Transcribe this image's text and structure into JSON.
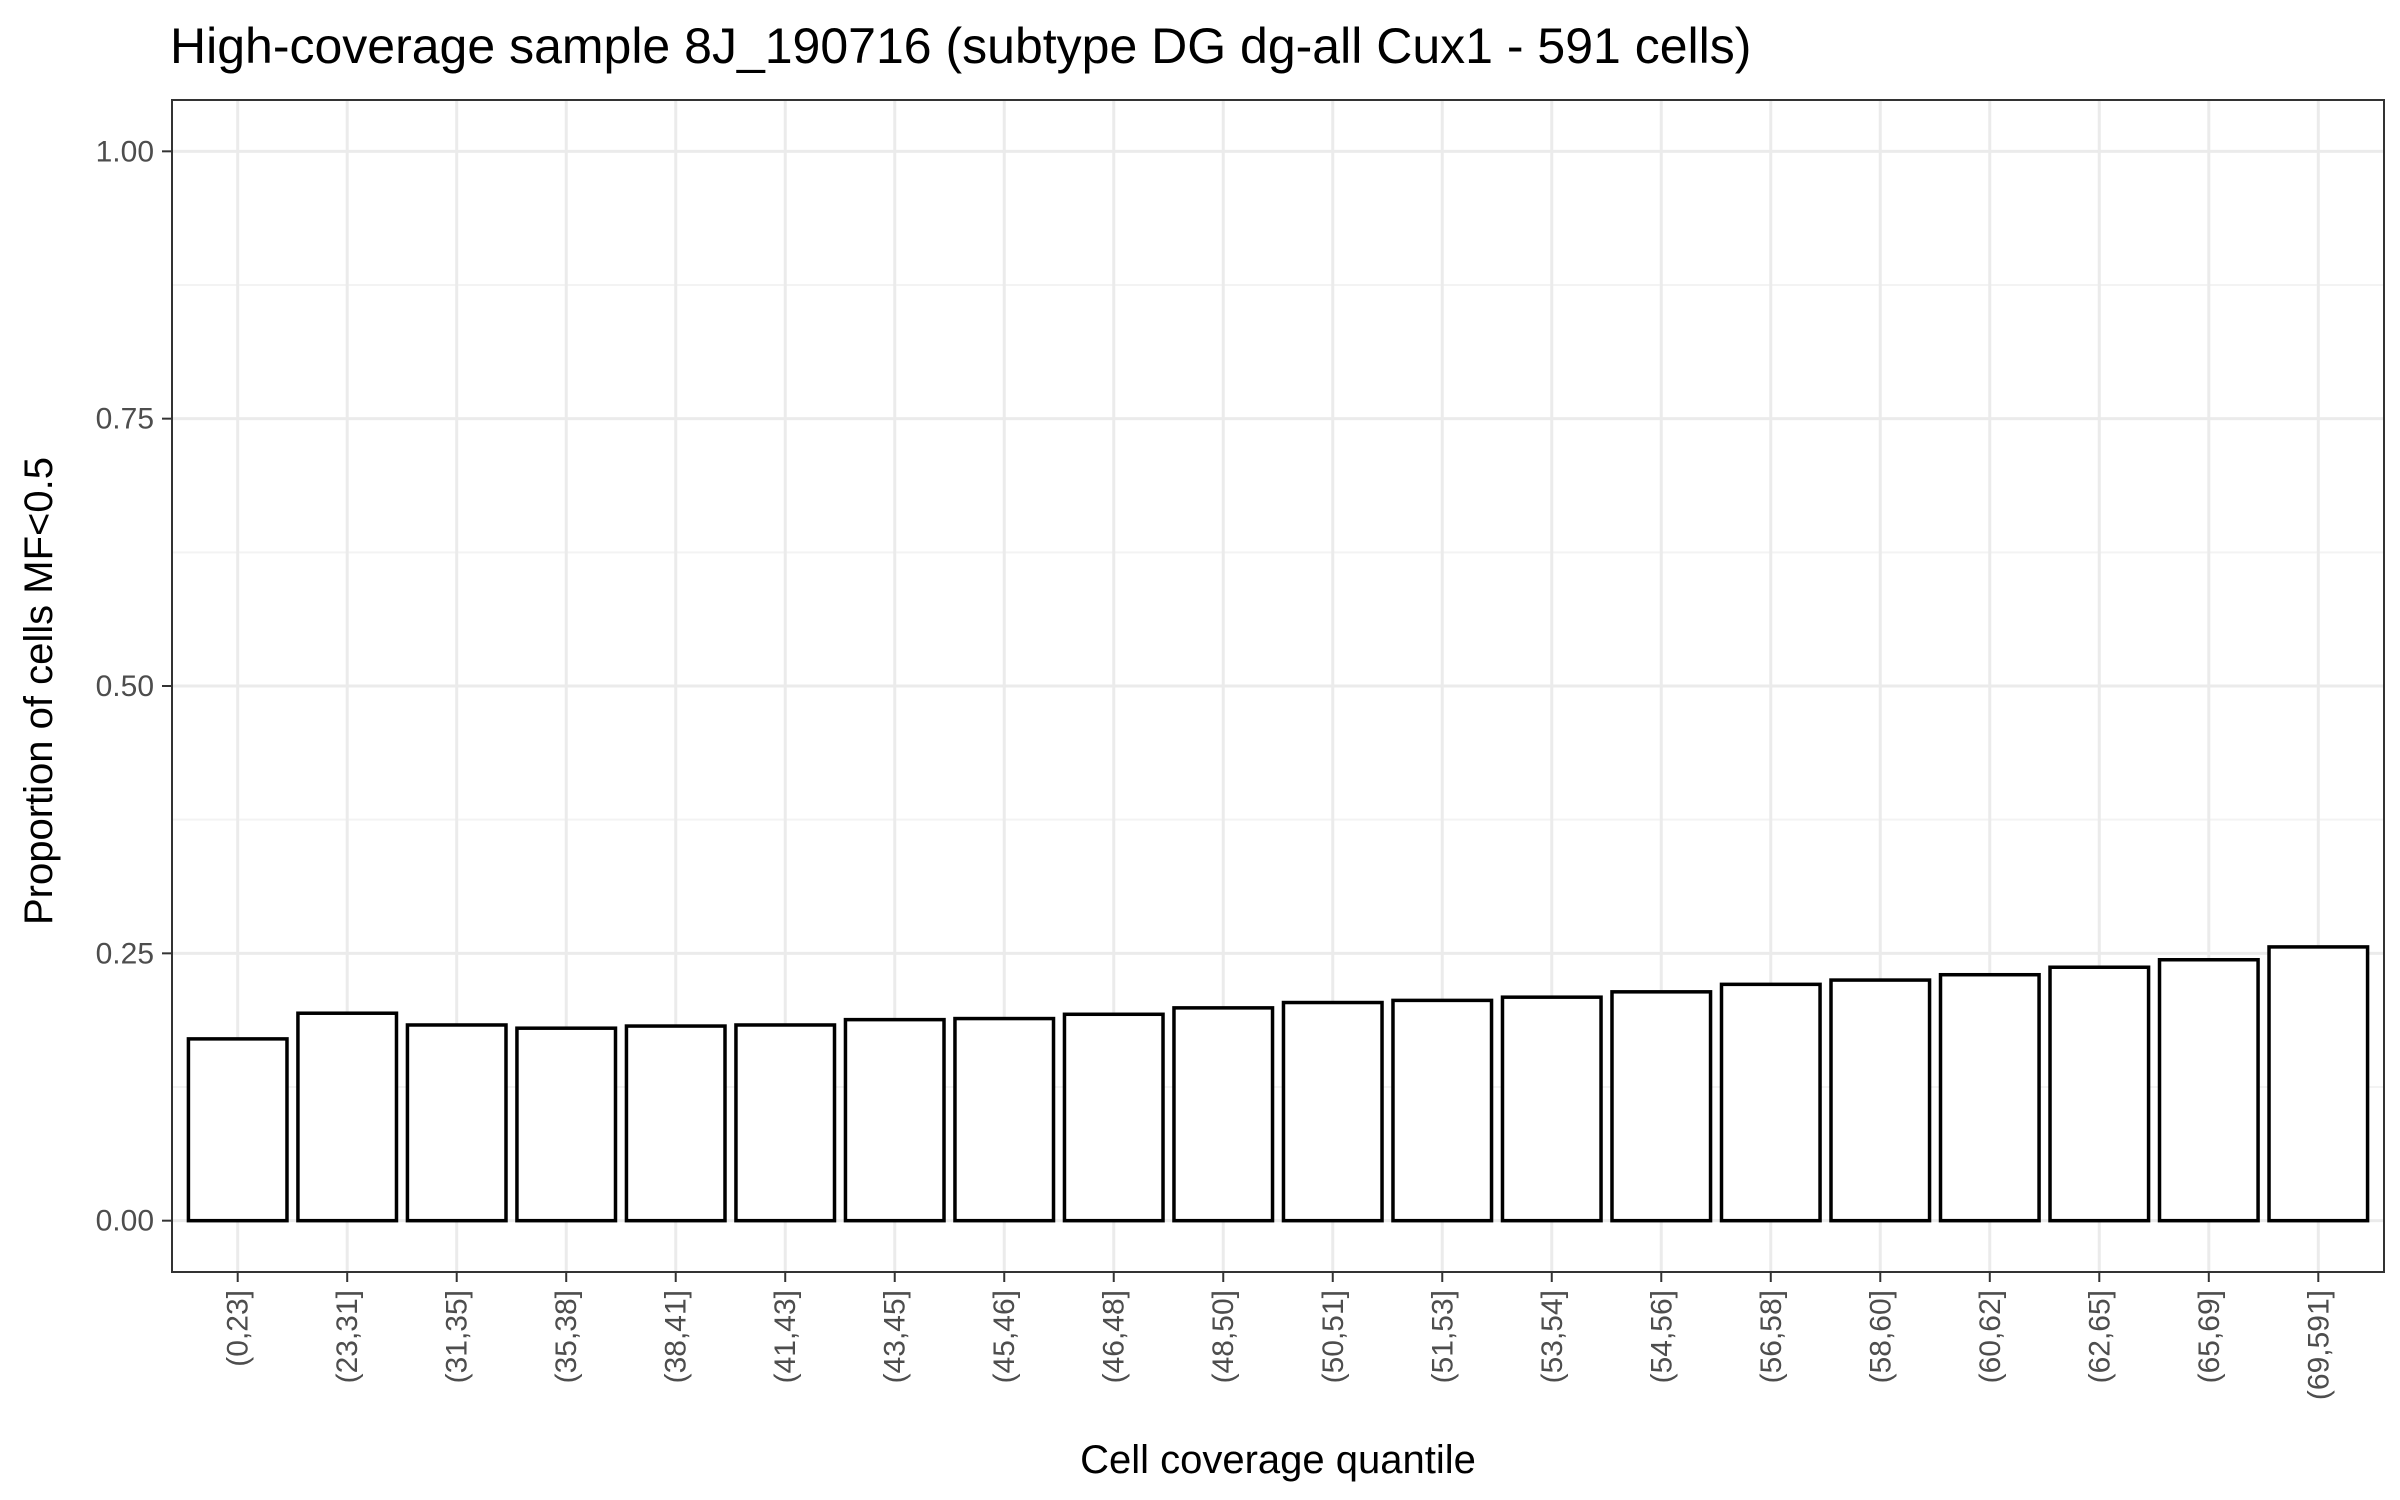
{
  "chart_data": {
    "type": "bar",
    "title": "High-coverage sample 8J_190716 (subtype DG dg-all Cux1 - 591 cells)",
    "xlabel": "Cell coverage quantile",
    "ylabel": "Proportion of cells MF<0.5",
    "categories": [
      "(0,23]",
      "(23,31]",
      "(31,35]",
      "(35,38]",
      "(38,41]",
      "(41,43]",
      "(43,45]",
      "(45,46]",
      "(46,48]",
      "(48,50]",
      "(50,51]",
      "(51,53]",
      "(53,54]",
      "(54,56]",
      "(56,58]",
      "(58,60]",
      "(60,62]",
      "(62,65]",
      "(65,69]",
      "(69,591]"
    ],
    "values": [
      0.17,
      0.194,
      0.183,
      0.18,
      0.182,
      0.183,
      0.188,
      0.189,
      0.193,
      0.199,
      0.204,
      0.206,
      0.209,
      0.214,
      0.221,
      0.225,
      0.23,
      0.237,
      0.244,
      0.256
    ],
    "ylim": [
      -0.048,
      1.048
    ],
    "yticks": [
      0,
      0.25,
      0.5,
      0.75,
      1
    ],
    "ytick_labels": [
      "0.00",
      "0.25",
      "0.50",
      "0.75",
      "1.00"
    ],
    "grid": true,
    "colors": {
      "bar_fill": "#ffffff",
      "bar_stroke": "#000000",
      "grid_major": "#ebebeb",
      "grid_minor": "#f3f3f3",
      "panel_border": "#333333",
      "tick_text": "#4d4d4d"
    }
  }
}
